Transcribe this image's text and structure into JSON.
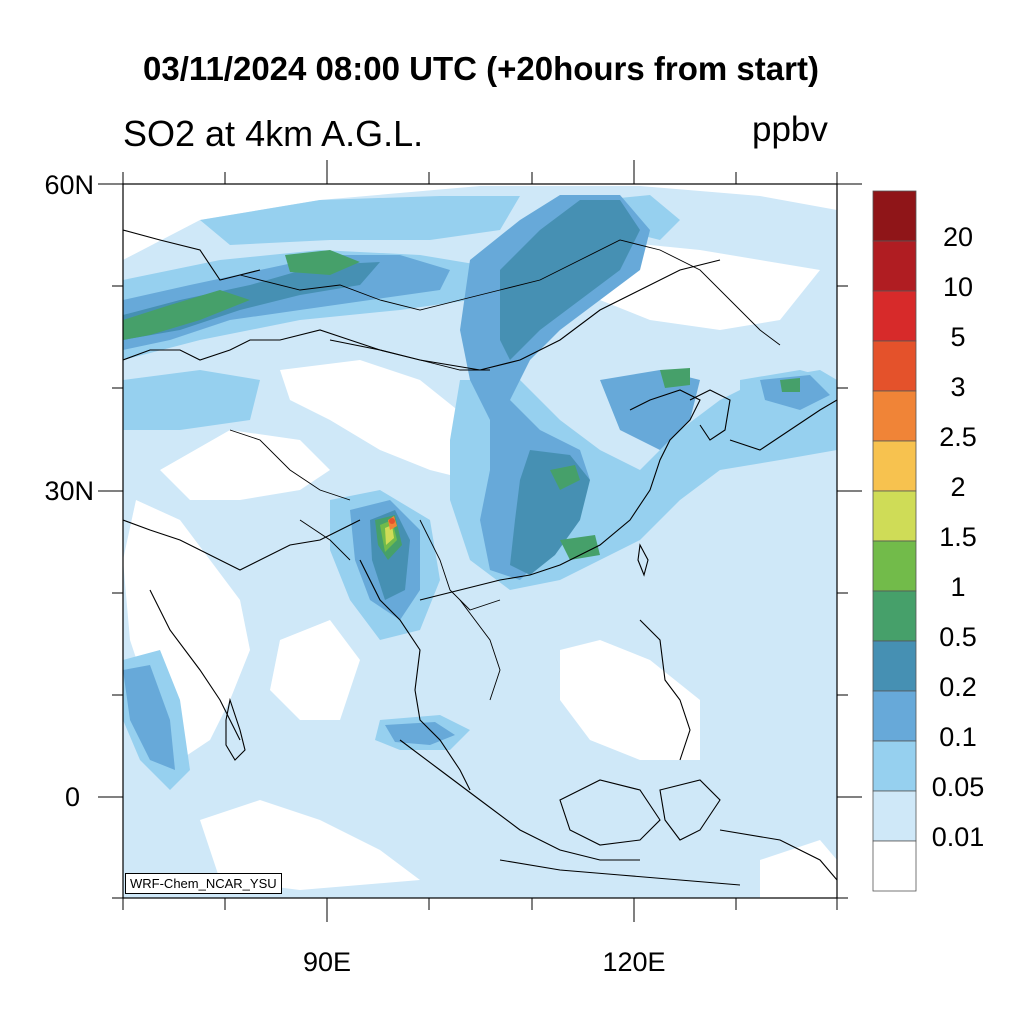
{
  "title": "03/11/2024 08:00 UTC (+20hours from start)",
  "subtitle": "SO2 at 4km A.G.L.",
  "units": "ppbv",
  "credit": "WRF-Chem_NCAR_YSU",
  "axes": {
    "y_ticks": [
      {
        "label": "60N",
        "lat": 60
      },
      {
        "label": "30N",
        "lat": 30
      },
      {
        "label": "0",
        "lat": 0
      }
    ],
    "x_ticks": [
      {
        "label": "90E",
        "lon": 90
      },
      {
        "label": "120E",
        "lon": 120
      }
    ],
    "lat_range": [
      -10,
      60
    ],
    "lon_range": [
      70,
      140
    ]
  },
  "colorbar": {
    "levels": [
      "20",
      "10",
      "5",
      "3",
      "2.5",
      "2",
      "1.5",
      "1",
      "0.5",
      "0.2",
      "0.1",
      "0.05",
      "0.01"
    ],
    "colors": [
      "#8f1518",
      "#b01d22",
      "#d72a2a",
      "#e4522b",
      "#f08437",
      "#f7c24f",
      "#cfdc57",
      "#72bb4a",
      "#46a06a",
      "#4690b3",
      "#67a9d9",
      "#96d0ef",
      "#cfe8f8",
      "#ffffff"
    ]
  }
}
